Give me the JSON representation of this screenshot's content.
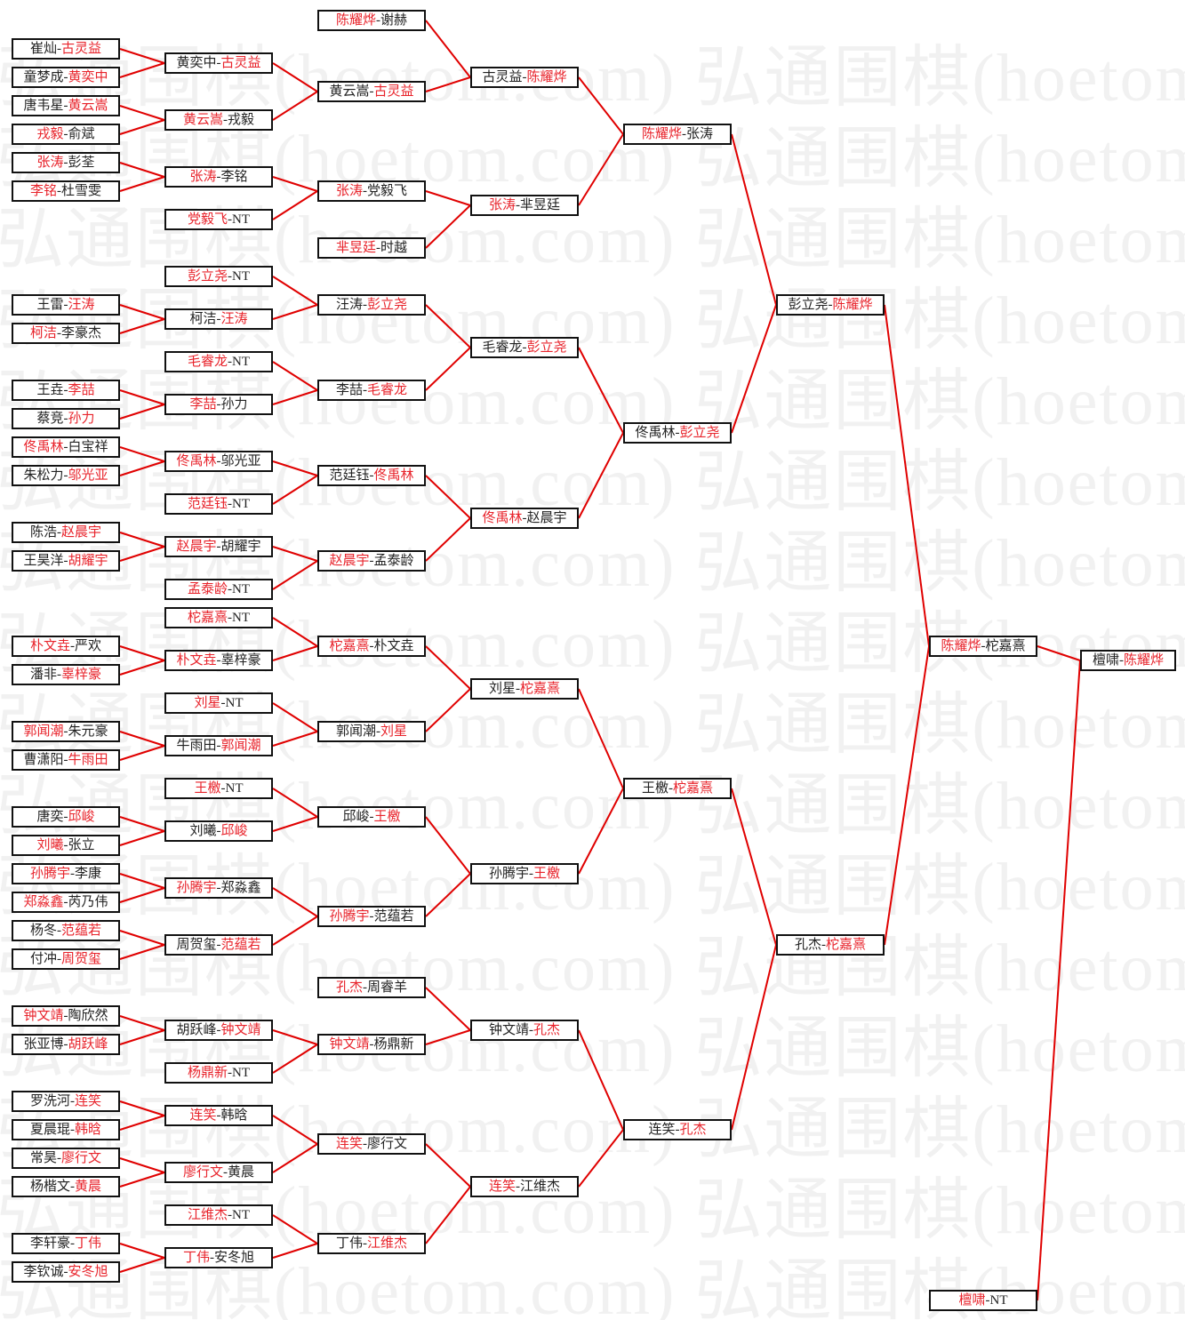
{
  "watermark": "弘通围棋(hoetom.com)",
  "colors": {
    "winner": "#e8232b",
    "line": "#e00000",
    "border": "#111111"
  },
  "separator": "-",
  "rounds": [
    {
      "matches": [
        {
          "p1": "崔灿",
          "p2": "古灵益",
          "w": 2,
          "from": []
        },
        {
          "p1": "童梦成",
          "p2": "黄奕中",
          "w": 2,
          "from": []
        },
        {
          "p1": "唐韦星",
          "p2": "黄云嵩",
          "w": 2,
          "from": []
        },
        {
          "p1": "戎毅",
          "p2": "俞斌",
          "w": 1,
          "from": []
        },
        {
          "p1": "张涛",
          "p2": "彭荃",
          "w": 1,
          "from": []
        },
        {
          "p1": "李铭",
          "p2": "杜雪雯",
          "w": 1,
          "from": []
        },
        {
          "p1": "王雷",
          "p2": "汪涛",
          "w": 2,
          "from": []
        },
        {
          "p1": "柯洁",
          "p2": "李豪杰",
          "w": 1,
          "from": []
        },
        {
          "p1": "王垚",
          "p2": "李喆",
          "w": 2,
          "from": []
        },
        {
          "p1": "蔡竞",
          "p2": "孙力",
          "w": 2,
          "from": []
        },
        {
          "p1": "佟禹林",
          "p2": "白宝祥",
          "w": 1,
          "from": []
        },
        {
          "p1": "朱松力",
          "p2": "邬光亚",
          "w": 2,
          "from": []
        },
        {
          "p1": "陈浩",
          "p2": "赵晨宇",
          "w": 2,
          "from": []
        },
        {
          "p1": "王昊洋",
          "p2": "胡耀宇",
          "w": 2,
          "from": []
        },
        {
          "p1": "朴文垚",
          "p2": "严欢",
          "w": 1,
          "from": []
        },
        {
          "p1": "潘非",
          "p2": "辜梓豪",
          "w": 2,
          "from": []
        },
        {
          "p1": "郭闻潮",
          "p2": "朱元豪",
          "w": 1,
          "from": []
        },
        {
          "p1": "曹潇阳",
          "p2": "牛雨田",
          "w": 2,
          "from": []
        },
        {
          "p1": "唐奕",
          "p2": "邱峻",
          "w": 2,
          "from": []
        },
        {
          "p1": "刘曦",
          "p2": "张立",
          "w": 1,
          "from": []
        },
        {
          "p1": "孙腾宇",
          "p2": "李康",
          "w": 1,
          "from": []
        },
        {
          "p1": "郑淼鑫",
          "p2": "芮乃伟",
          "w": 1,
          "from": []
        },
        {
          "p1": "杨冬",
          "p2": "范蕴若",
          "w": 2,
          "from": []
        },
        {
          "p1": "付冲",
          "p2": "周贺玺",
          "w": 2,
          "from": []
        },
        {
          "p1": "钟文靖",
          "p2": "陶欣然",
          "w": 1,
          "from": []
        },
        {
          "p1": "张亚博",
          "p2": "胡跃峰",
          "w": 2,
          "from": []
        },
        {
          "p1": "罗洗河",
          "p2": "连笑",
          "w": 2,
          "from": []
        },
        {
          "p1": "夏晨琨",
          "p2": "韩晗",
          "w": 2,
          "from": []
        },
        {
          "p1": "常昊",
          "p2": "廖行文",
          "w": 2,
          "from": []
        },
        {
          "p1": "杨楷文",
          "p2": "黄晨",
          "w": 2,
          "from": []
        },
        {
          "p1": "李轩豪",
          "p2": "丁伟",
          "w": 2,
          "from": []
        },
        {
          "p1": "李钦诚",
          "p2": "安冬旭",
          "w": 2,
          "from": []
        }
      ]
    },
    {
      "matches": [
        {
          "p1": "黄奕中",
          "p2": "古灵益",
          "w": 2,
          "from": [
            0,
            1
          ]
        },
        {
          "p1": "黄云嵩",
          "p2": "戎毅",
          "w": 1,
          "from": [
            2,
            3
          ]
        },
        {
          "p1": "张涛",
          "p2": "李铭",
          "w": 1,
          "from": [
            4,
            5
          ]
        },
        {
          "p1": "党毅飞",
          "p2": "NT",
          "w": 1,
          "from": []
        },
        {
          "p1": "彭立尧",
          "p2": "NT",
          "w": 1,
          "from": []
        },
        {
          "p1": "柯洁",
          "p2": "汪涛",
          "w": 2,
          "from": [
            6,
            7
          ]
        },
        {
          "p1": "毛睿龙",
          "p2": "NT",
          "w": 1,
          "from": []
        },
        {
          "p1": "李喆",
          "p2": "孙力",
          "w": 1,
          "from": [
            8,
            9
          ]
        },
        {
          "p1": "佟禹林",
          "p2": "邬光亚",
          "w": 1,
          "from": [
            10,
            11
          ]
        },
        {
          "p1": "范廷钰",
          "p2": "NT",
          "w": 1,
          "from": []
        },
        {
          "p1": "赵晨宇",
          "p2": "胡耀宇",
          "w": 1,
          "from": [
            12,
            13
          ]
        },
        {
          "p1": "孟泰龄",
          "p2": "NT",
          "w": 1,
          "from": []
        },
        {
          "p1": "柁嘉熹",
          "p2": "NT",
          "w": 1,
          "from": []
        },
        {
          "p1": "朴文垚",
          "p2": "辜梓豪",
          "w": 1,
          "from": [
            14,
            15
          ]
        },
        {
          "p1": "刘星",
          "p2": "NT",
          "w": 1,
          "from": []
        },
        {
          "p1": "牛雨田",
          "p2": "郭闻潮",
          "w": 2,
          "from": [
            16,
            17
          ]
        },
        {
          "p1": "王檄",
          "p2": "NT",
          "w": 1,
          "from": []
        },
        {
          "p1": "刘曦",
          "p2": "邱峻",
          "w": 2,
          "from": [
            18,
            19
          ]
        },
        {
          "p1": "孙腾宇",
          "p2": "郑淼鑫",
          "w": 1,
          "from": [
            20,
            21
          ]
        },
        {
          "p1": "周贺玺",
          "p2": "范蕴若",
          "w": 2,
          "from": [
            22,
            23
          ]
        },
        {
          "p1": "胡跃峰",
          "p2": "钟文靖",
          "w": 2,
          "from": [
            24,
            25
          ]
        },
        {
          "p1": "杨鼎新",
          "p2": "NT",
          "w": 1,
          "from": []
        },
        {
          "p1": "连笑",
          "p2": "韩晗",
          "w": 1,
          "from": [
            26,
            27
          ]
        },
        {
          "p1": "廖行文",
          "p2": "黄晨",
          "w": 1,
          "from": [
            28,
            29
          ]
        },
        {
          "p1": "江维杰",
          "p2": "NT",
          "w": 1,
          "from": []
        },
        {
          "p1": "丁伟",
          "p2": "安冬旭",
          "w": 1,
          "from": [
            30,
            31
          ]
        }
      ]
    },
    {
      "matches": [
        {
          "p1": "陈耀烨",
          "p2": "谢赫",
          "w": 1,
          "from": []
        },
        {
          "p1": "黄云嵩",
          "p2": "古灵益",
          "w": 2,
          "from": [
            0,
            1
          ]
        },
        {
          "p1": "张涛",
          "p2": "党毅飞",
          "w": 1,
          "from": [
            2,
            3
          ]
        },
        {
          "p1": "芈昱廷",
          "p2": "时越",
          "w": 1,
          "from": []
        },
        {
          "p1": "汪涛",
          "p2": "彭立尧",
          "w": 2,
          "from": [
            4,
            5
          ]
        },
        {
          "p1": "李喆",
          "p2": "毛睿龙",
          "w": 2,
          "from": [
            6,
            7
          ]
        },
        {
          "p1": "范廷钰",
          "p2": "佟禹林",
          "w": 2,
          "from": [
            8,
            9
          ]
        },
        {
          "p1": "赵晨宇",
          "p2": "孟泰龄",
          "w": 1,
          "from": [
            10,
            11
          ]
        },
        {
          "p1": "柁嘉熹",
          "p2": "朴文垚",
          "w": 1,
          "from": [
            12,
            13
          ]
        },
        {
          "p1": "郭闻潮",
          "p2": "刘星",
          "w": 2,
          "from": [
            14,
            15
          ]
        },
        {
          "p1": "邱峻",
          "p2": "王檄",
          "w": 2,
          "from": [
            16,
            17
          ]
        },
        {
          "p1": "孙腾宇",
          "p2": "范蕴若",
          "w": 1,
          "from": [
            18,
            19
          ]
        },
        {
          "p1": "孔杰",
          "p2": "周睿羊",
          "w": 1,
          "from": []
        },
        {
          "p1": "钟文靖",
          "p2": "杨鼎新",
          "w": 1,
          "from": [
            20,
            21
          ]
        },
        {
          "p1": "连笑",
          "p2": "廖行文",
          "w": 1,
          "from": [
            22,
            23
          ]
        },
        {
          "p1": "丁伟",
          "p2": "江维杰",
          "w": 2,
          "from": [
            24,
            25
          ]
        }
      ]
    },
    {
      "matches": [
        {
          "p1": "古灵益",
          "p2": "陈耀烨",
          "w": 2,
          "from": [
            0,
            1
          ]
        },
        {
          "p1": "张涛",
          "p2": "芈昱廷",
          "w": 1,
          "from": [
            2,
            3
          ]
        },
        {
          "p1": "毛睿龙",
          "p2": "彭立尧",
          "w": 2,
          "from": [
            4,
            5
          ]
        },
        {
          "p1": "佟禹林",
          "p2": "赵晨宇",
          "w": 1,
          "from": [
            6,
            7
          ]
        },
        {
          "p1": "刘星",
          "p2": "柁嘉熹",
          "w": 2,
          "from": [
            8,
            9
          ]
        },
        {
          "p1": "孙腾宇",
          "p2": "王檄",
          "w": 2,
          "from": [
            10,
            11
          ]
        },
        {
          "p1": "钟文靖",
          "p2": "孔杰",
          "w": 2,
          "from": [
            12,
            13
          ]
        },
        {
          "p1": "连笑",
          "p2": "江维杰",
          "w": 1,
          "from": [
            14,
            15
          ]
        }
      ]
    },
    {
      "matches": [
        {
          "p1": "陈耀烨",
          "p2": "张涛",
          "w": 1,
          "from": [
            0,
            1
          ]
        },
        {
          "p1": "佟禹林",
          "p2": "彭立尧",
          "w": 2,
          "from": [
            2,
            3
          ]
        },
        {
          "p1": "王檄",
          "p2": "柁嘉熹",
          "w": 2,
          "from": [
            4,
            5
          ]
        },
        {
          "p1": "连笑",
          "p2": "孔杰",
          "w": 2,
          "from": [
            6,
            7
          ]
        }
      ]
    },
    {
      "matches": [
        {
          "p1": "彭立尧",
          "p2": "陈耀烨",
          "w": 2,
          "from": [
            0,
            1
          ]
        },
        {
          "p1": "孔杰",
          "p2": "柁嘉熹",
          "w": 2,
          "from": [
            2,
            3
          ]
        }
      ]
    },
    {
      "matches": [
        {
          "p1": "陈耀烨",
          "p2": "柁嘉熹",
          "w": 1,
          "from": [
            0,
            1
          ]
        },
        {
          "p1": "檀啸",
          "p2": "NT",
          "w": 1,
          "from": []
        }
      ]
    },
    {
      "matches": [
        {
          "p1": "檀啸",
          "p2": "陈耀烨",
          "w": 2,
          "from": [
            0,
            1
          ]
        }
      ]
    }
  ]
}
